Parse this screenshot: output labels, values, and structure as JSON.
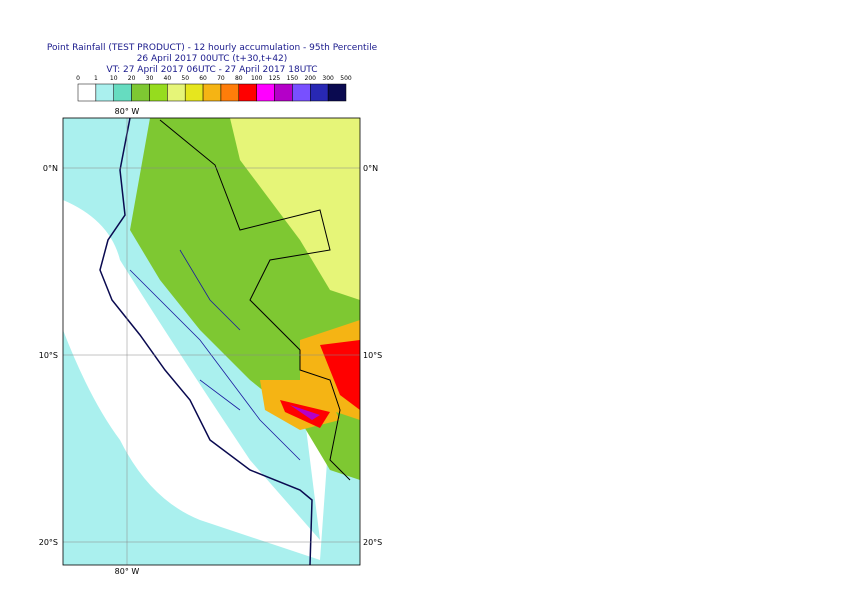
{
  "header": {
    "lines": [
      "Point Rainfall (TEST PRODUCT) - 12 hourly accumulation - 95th Percentile",
      "26 April 2017 00UTC (t+30,t+42)",
      "VT: 27 April 2017 06UTC - 27 April 2017 18UTC"
    ]
  },
  "legend": {
    "labels": [
      "0",
      "1",
      "10",
      "20",
      "30",
      "40",
      "50",
      "60",
      "70",
      "80",
      "100",
      "125",
      "150",
      "200",
      "300",
      "500"
    ],
    "colors": [
      "#ffffff",
      "#aaf0ee",
      "#66dcc0",
      "#7ec832",
      "#96dc1e",
      "#e6f578",
      "#e6e61e",
      "#f5b414",
      "#ff7d0a",
      "#ff0000",
      "#ff00ff",
      "#b400c8",
      "#7850ff",
      "#2828b4",
      "#0a0a50"
    ]
  },
  "map": {
    "top_longitude": "80° W",
    "bottom_longitude": "80° W",
    "left_latitudes": [
      "0°N",
      "10°S",
      "20°S"
    ],
    "right_latitudes": [
      "0°N",
      "10°S",
      "20°S"
    ]
  }
}
